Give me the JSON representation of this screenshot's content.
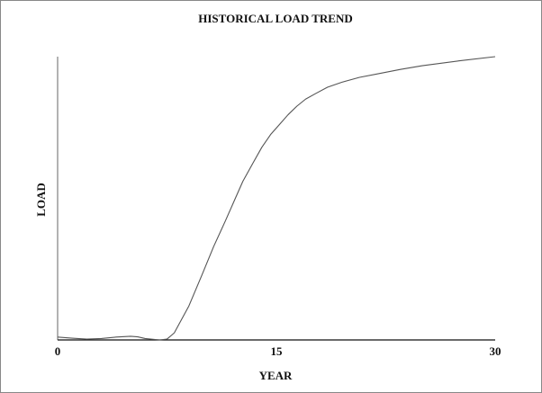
{
  "chart_data": {
    "type": "line",
    "title": "HISTORICAL LOAD TREND",
    "xlabel": "YEAR",
    "ylabel": "LOAD",
    "x": [
      0,
      1,
      2,
      3,
      4,
      5,
      5.5,
      6,
      7,
      7.5,
      8,
      8.4,
      9,
      9.9,
      10.7,
      11.5,
      12.1,
      12.7,
      13.4,
      14,
      14.6,
      15.2,
      15.8,
      16.4,
      17,
      17.7,
      18.5,
      19.5,
      20.7,
      22,
      23.5,
      25,
      27.5,
      30
    ],
    "series": [
      {
        "name": "LOAD",
        "color": "#555555",
        "values": [
          1,
          0.6,
          0.3,
          0.5,
          1,
          1.3,
          1.1,
          0.5,
          0,
          0.3,
          2.5,
          6.3,
          12,
          23,
          33,
          42,
          49,
          56,
          62.5,
          68,
          72.5,
          76,
          79.5,
          82.5,
          85,
          87,
          89.2,
          91,
          92.7,
          94,
          95.5,
          96.8,
          98.5,
          100
        ]
      }
    ],
    "xlim": [
      0,
      30
    ],
    "xticks": [
      0,
      15,
      30
    ],
    "ylim": [
      0,
      100
    ],
    "grid": false
  }
}
